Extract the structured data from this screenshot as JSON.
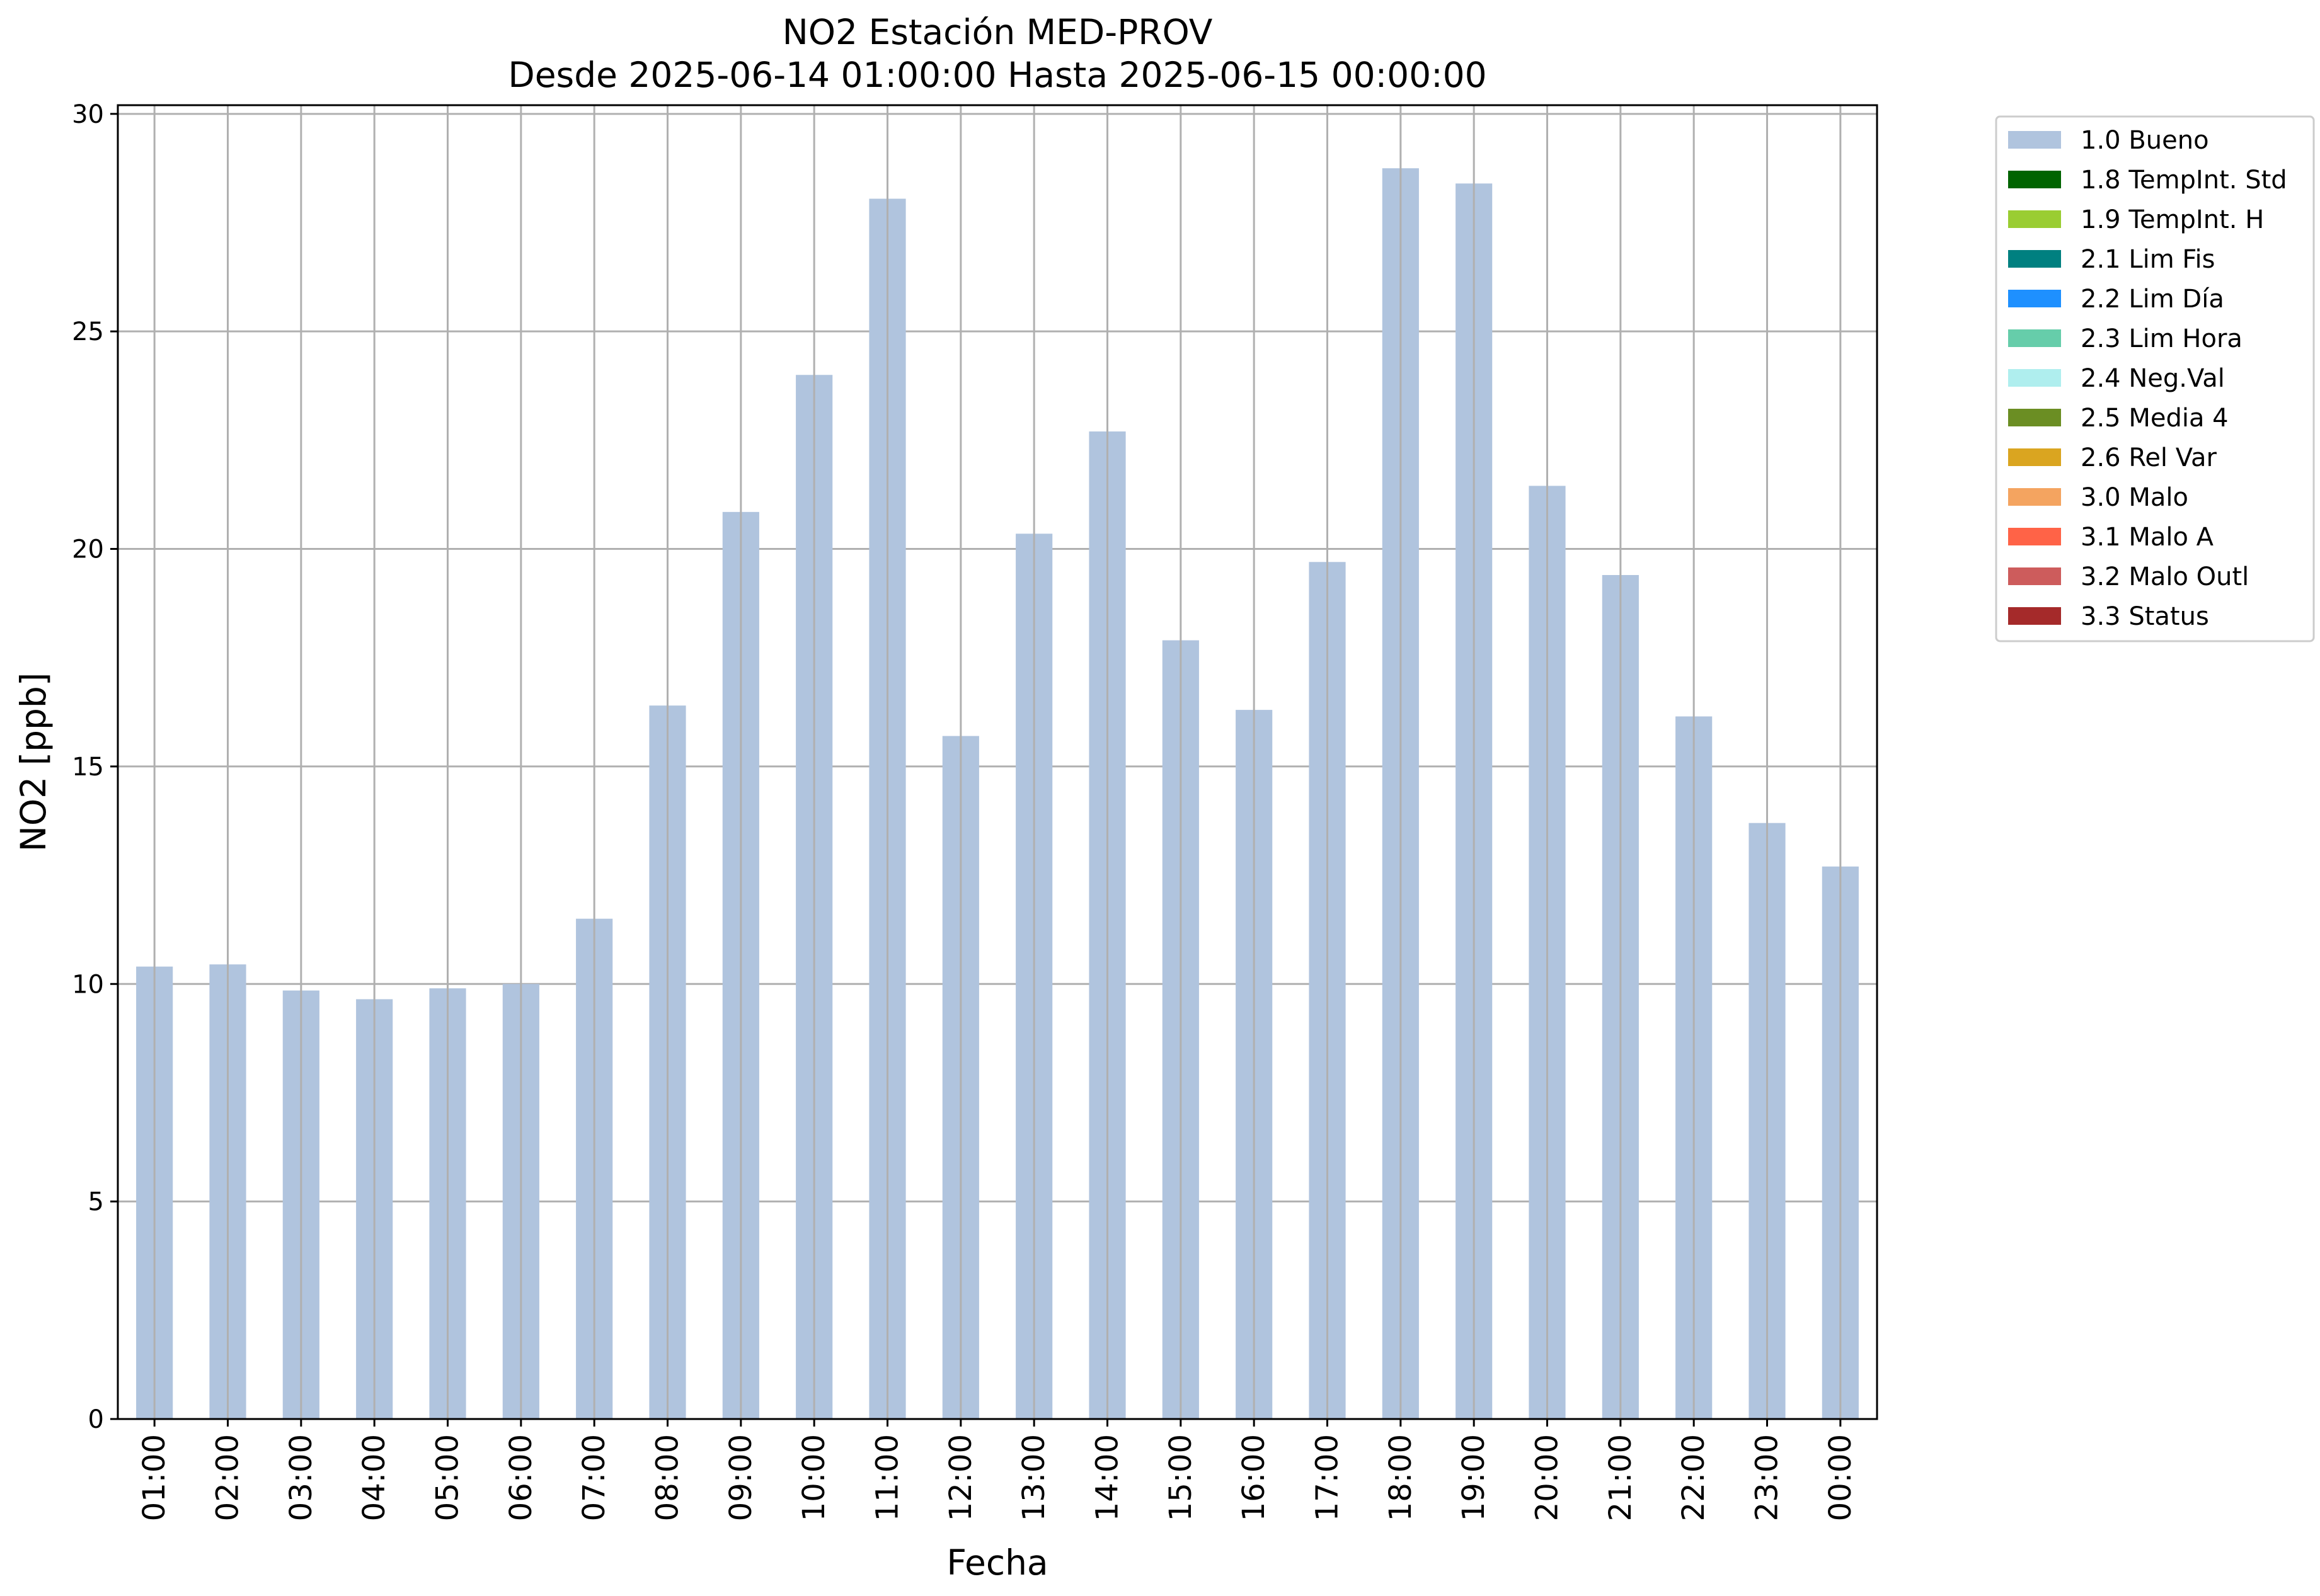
{
  "chart_data": {
    "type": "bar",
    "title": "NO2 Estación MED-PROV",
    "subtitle": "Desde 2025-06-14 01:00:00 Hasta 2025-06-15 00:00:00",
    "xlabel": "Fecha",
    "ylabel": "NO2 [ppb]",
    "ylim": [
      0,
      30.2
    ],
    "yticks": [
      "0",
      "5",
      "10",
      "15",
      "20",
      "25",
      "30"
    ],
    "grid": true,
    "legend_position": "outside-top-right",
    "categories": [
      "01:00",
      "02:00",
      "03:00",
      "04:00",
      "05:00",
      "06:00",
      "07:00",
      "08:00",
      "09:00",
      "10:00",
      "11:00",
      "12:00",
      "13:00",
      "14:00",
      "15:00",
      "16:00",
      "17:00",
      "18:00",
      "19:00",
      "20:00",
      "21:00",
      "22:00",
      "23:00",
      "00:00"
    ],
    "series": [
      {
        "name": "1.0 Bueno",
        "color": "#b0c4de",
        "values": [
          10.4,
          10.45,
          9.85,
          9.65,
          9.9,
          10.0,
          11.5,
          16.4,
          20.85,
          24.0,
          28.05,
          15.7,
          20.35,
          22.7,
          17.9,
          16.3,
          19.7,
          28.75,
          28.4,
          21.45,
          19.4,
          16.15,
          13.7,
          12.7
        ]
      }
    ],
    "legend": [
      {
        "label": "1.0 Bueno",
        "color": "#b0c4de"
      },
      {
        "label": "1.8 TempInt. Std",
        "color": "#006400"
      },
      {
        "label": "1.9 TempInt. H",
        "color": "#9acd32"
      },
      {
        "label": "2.1 Lim Fis",
        "color": "#008080"
      },
      {
        "label": "2.2 Lim Día",
        "color": "#1e90ff"
      },
      {
        "label": "2.3 Lim Hora",
        "color": "#66cdaa"
      },
      {
        "label": "2.4 Neg.Val",
        "color": "#afeeee"
      },
      {
        "label": "2.5 Media 4",
        "color": "#6b8e23"
      },
      {
        "label": "2.6 Rel Var",
        "color": "#daa520"
      },
      {
        "label": "3.0 Malo",
        "color": "#f4a460"
      },
      {
        "label": "3.1 Malo A",
        "color": "#ff6347"
      },
      {
        "label": "3.2 Malo Outl",
        "color": "#cd5c5c"
      },
      {
        "label": "3.3 Status",
        "color": "#a52a2a"
      }
    ]
  }
}
